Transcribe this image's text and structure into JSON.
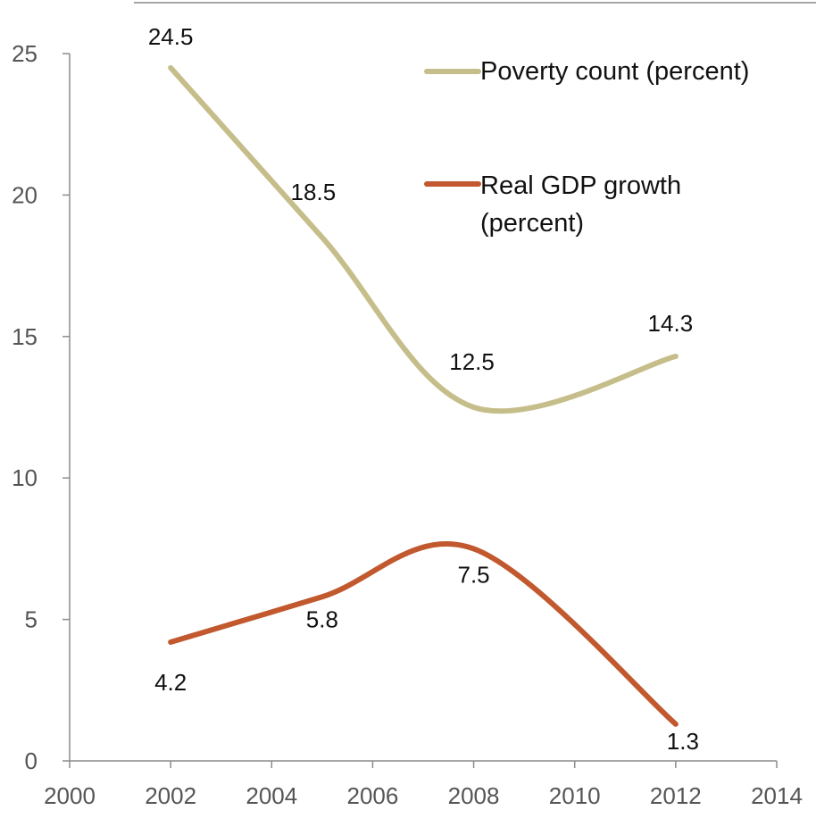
{
  "chart_data": {
    "type": "line",
    "title": "",
    "xlabel": "",
    "ylabel": "",
    "xlim": [
      2000,
      2014
    ],
    "ylim": [
      0,
      25
    ],
    "x_ticks": [
      "2000",
      "2002",
      "2004",
      "2006",
      "2008",
      "2010",
      "2012",
      "2014"
    ],
    "y_ticks": [
      "0",
      "5",
      "10",
      "15",
      "20",
      "25"
    ],
    "smooth": true,
    "grid": false,
    "legend_position": "top-right",
    "series": [
      {
        "name": "Poverty count (percent)",
        "color": "#C6BE8A",
        "x": [
          2002,
          2005,
          2008,
          2012
        ],
        "y": [
          24.5,
          18.5,
          12.5,
          14.3
        ],
        "labels": [
          "24.5",
          "18.5",
          "12.5",
          "14.3"
        ]
      },
      {
        "name": "Real GDP growth (percent)",
        "color": "#C1582E",
        "x": [
          2002,
          2005,
          2008,
          2012
        ],
        "y": [
          4.2,
          5.8,
          7.5,
          1.3
        ],
        "labels": [
          "4.2",
          "5.8",
          "7.5",
          "1.3"
        ]
      }
    ],
    "legend": {
      "entries": [
        {
          "lines": [
            "Poverty count (percent)"
          ]
        },
        {
          "lines": [
            "Real GDP growth",
            "(percent)"
          ]
        }
      ]
    }
  }
}
